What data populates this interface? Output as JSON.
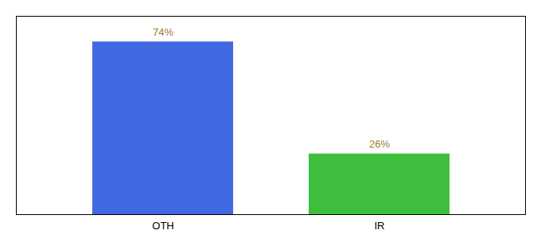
{
  "chart_data": {
    "type": "bar",
    "categories": [
      "OTH",
      "IR"
    ],
    "values": [
      74,
      26
    ],
    "value_labels": [
      "74%",
      "26%"
    ],
    "colors": [
      "#4169e1",
      "#3dbf3d"
    ],
    "ylim": [
      0,
      85
    ],
    "data_labels": true,
    "tick_labels": "x",
    "grid": false
  }
}
